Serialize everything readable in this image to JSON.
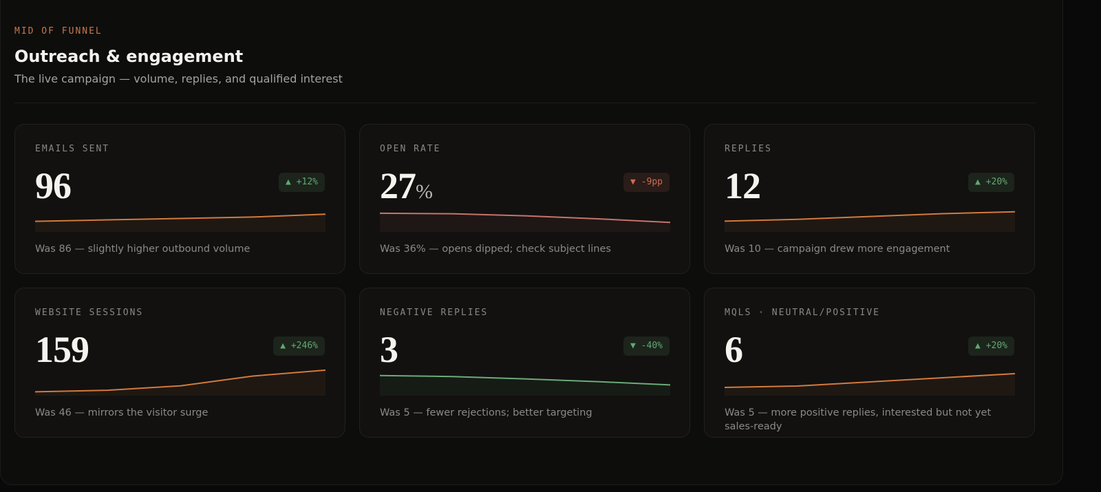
{
  "header": {
    "eyebrow": "MID OF FUNNEL",
    "title": "Outreach & engagement",
    "subtitle": "The live campaign — volume, replies, and qualified interest"
  },
  "cards": [
    {
      "label": "EMAILS SENT",
      "value": 96,
      "badge": "▲ +12%",
      "badge_color": "#62a872",
      "note": "Was 86 — slightly higher outbound volume",
      "spark": {
        "values": [
          86,
          88,
          90,
          92,
          96
        ],
        "ylim": [
          73,
          106
        ],
        "color": "#d47a3e"
      }
    },
    {
      "label": "OPEN RATE",
      "value": 27,
      "unit": "%",
      "badge": "▼ -9pp",
      "badge_color": "#cf6b55",
      "note": "Was 36% — opens dipped; check subject lines",
      "spark": {
        "values": [
          36,
          35.5,
          33.5,
          30.5,
          27
        ],
        "ylim": [
          19,
          42
        ],
        "color": "#c7746c"
      }
    },
    {
      "label": "REPLIES",
      "value": 12,
      "badge": "▲ +20%",
      "badge_color": "#62a872",
      "note": "Was 10 — campaign drew more engagement",
      "spark": {
        "values": [
          10,
          10.4,
          11,
          11.6,
          12
        ],
        "ylim": [
          8,
          13
        ],
        "color": "#d47a3e"
      }
    },
    {
      "label": "WEBSITE SESSIONS",
      "value": 159,
      "badge": "▲ +246%",
      "badge_color": "#62a872",
      "note": "Was 46 — mirrors the visitor surge",
      "spark": {
        "values": [
          46,
          54,
          77,
          128,
          159
        ],
        "ylim": [
          33,
          155
        ],
        "color": "#d47a3e"
      }
    },
    {
      "label": "NEGATIVE REPLIES",
      "value": 3,
      "badge": "▼ -40%",
      "badge_color": "#62a872",
      "note": "Was 5 — fewer rejections; better targeting",
      "spark": {
        "values": [
          5,
          4.8,
          4.3,
          3.7,
          3
        ],
        "ylim": [
          1,
          6
        ],
        "color": "#6aad78"
      }
    },
    {
      "label": "MQLS · NEUTRAL/POSITIVE",
      "value": 6,
      "badge": "▲ +20%",
      "badge_color": "#62a872",
      "note": "Was 5 — more positive replies, interested but not yet sales-ready",
      "spark": {
        "values": [
          5,
          5.1,
          5.4,
          5.7,
          6
        ],
        "ylim": [
          4.5,
          6.2
        ],
        "color": "#d47a3e"
      }
    }
  ]
}
